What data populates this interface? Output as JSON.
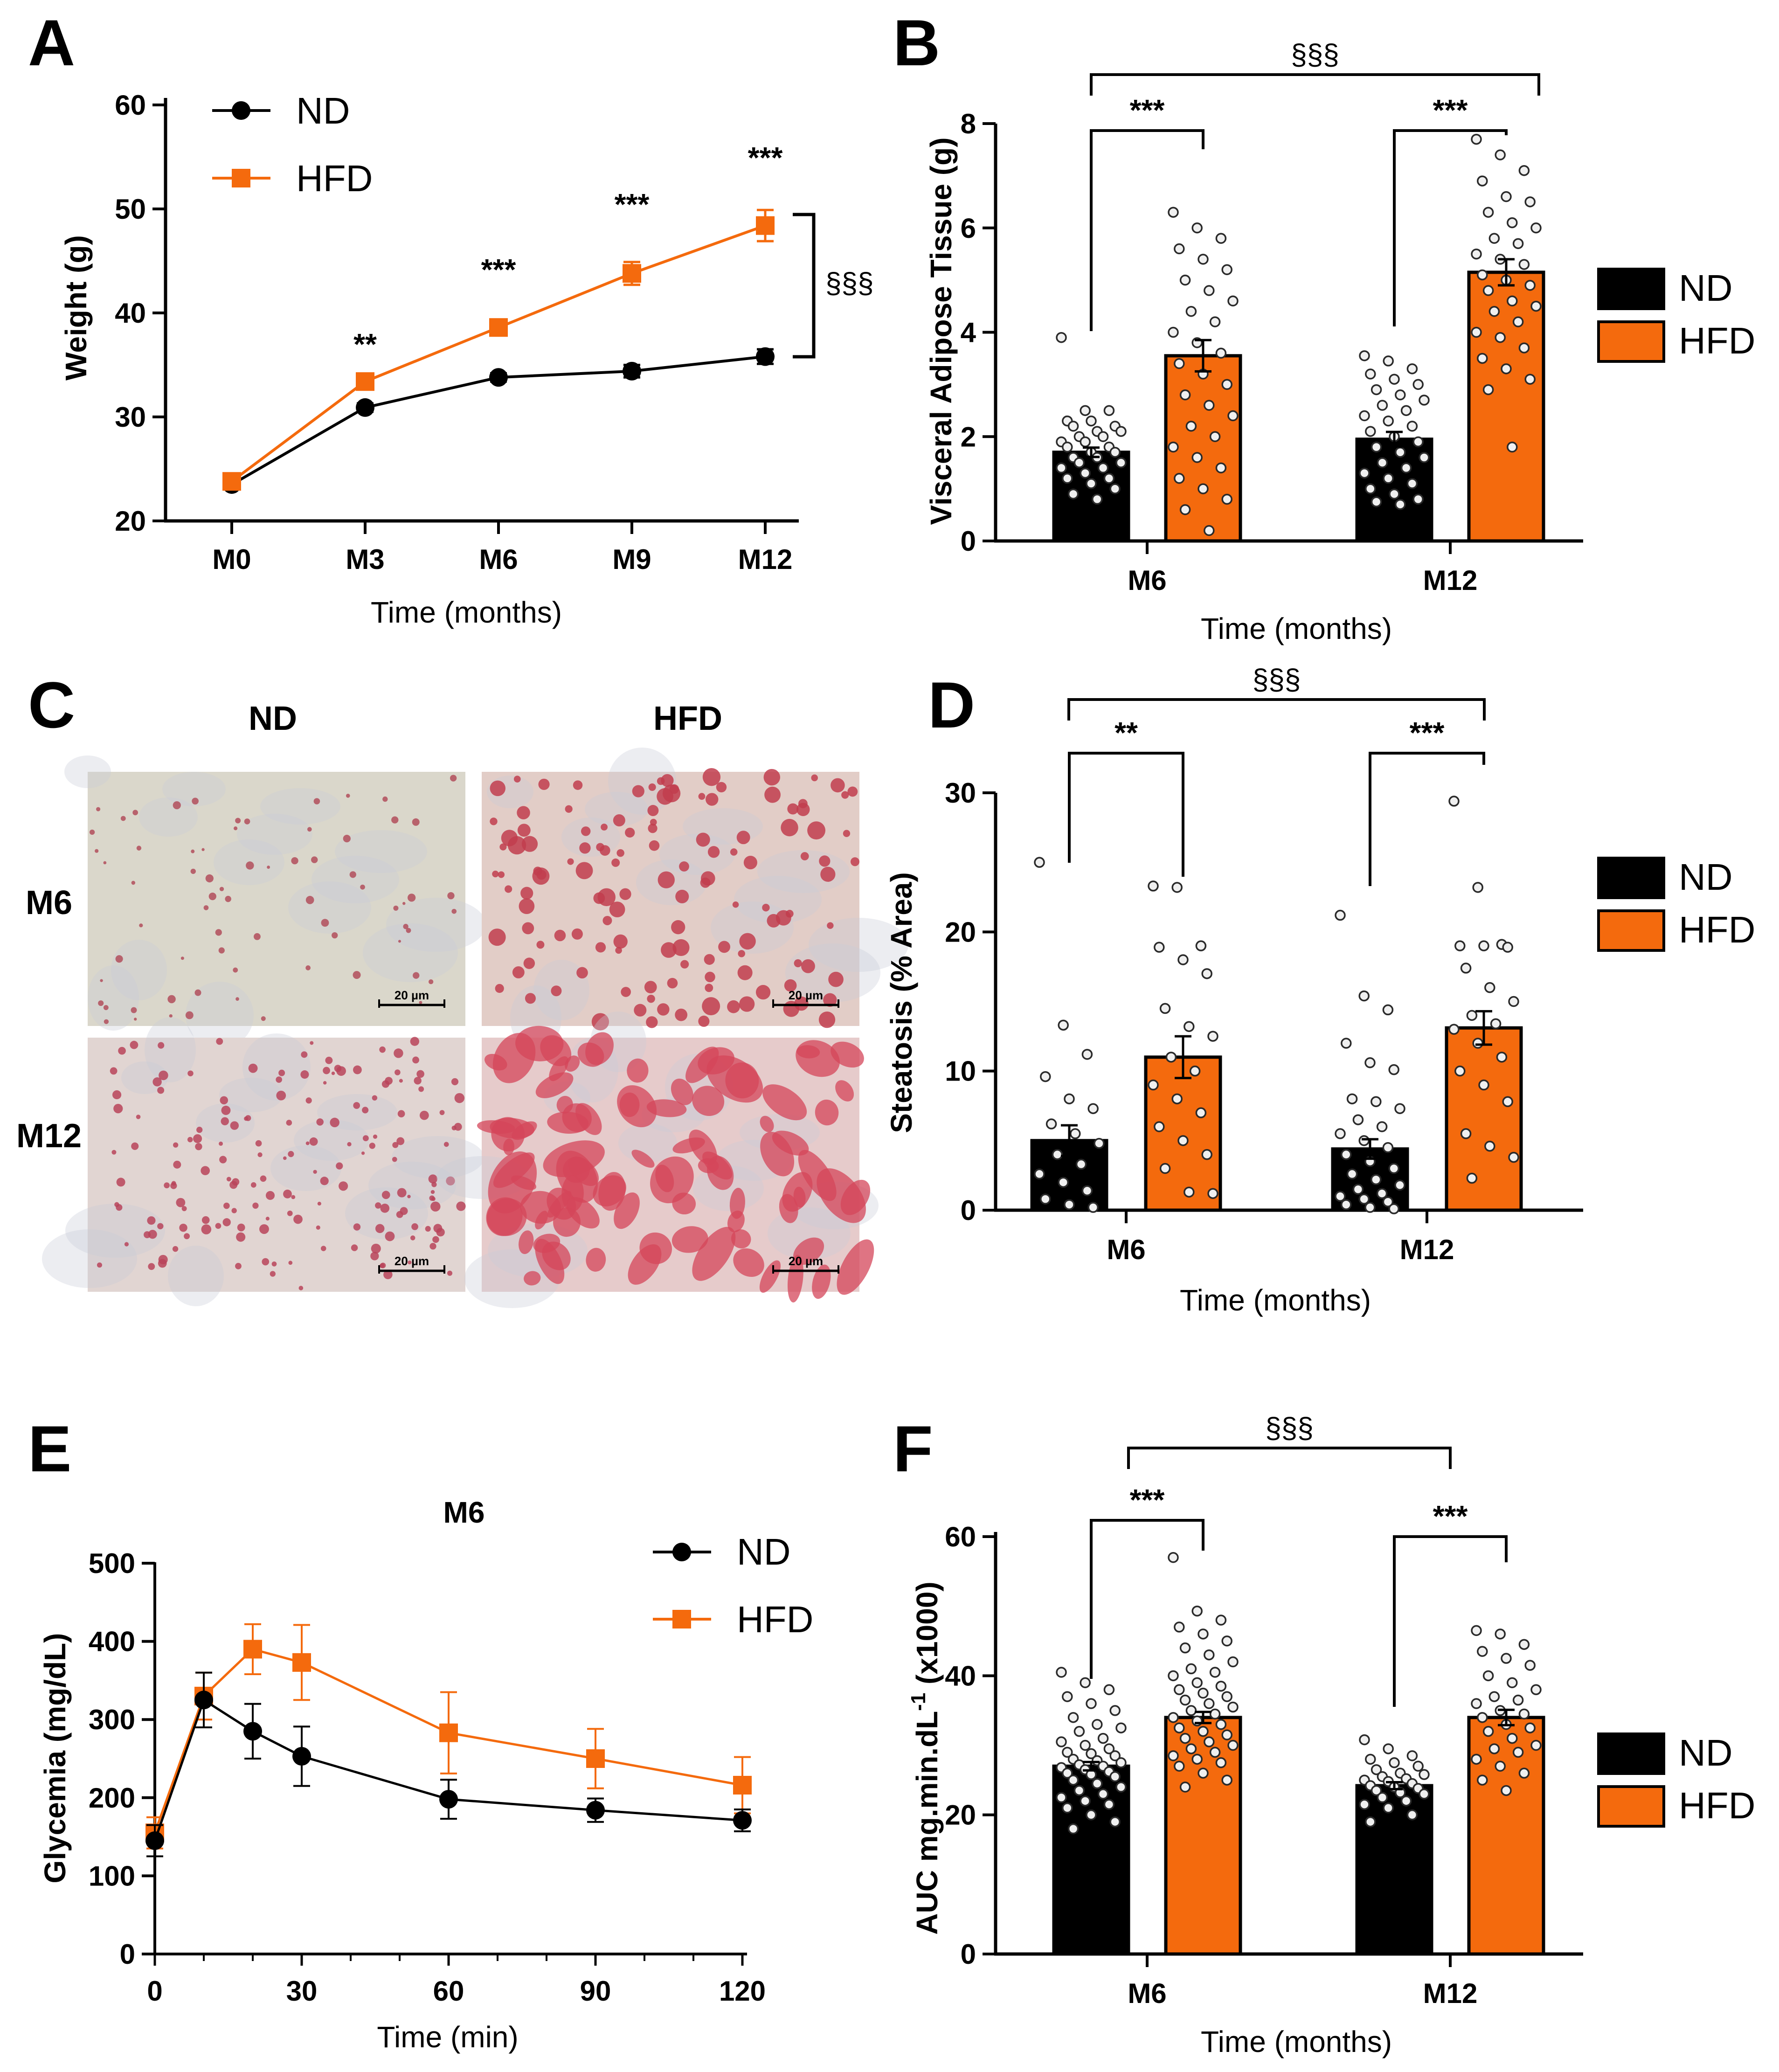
{
  "colors": {
    "nd": "#000000",
    "hfd": "#f46a0d",
    "axis": "#000000",
    "point_fill": "#f0f0f0"
  },
  "icons": {
    "nd_marker": "circle-marker-icon",
    "hfd_marker": "square-marker-icon",
    "scale_bar": "scale-bar-icon"
  },
  "chart_data": [
    {
      "panel": "A",
      "type": "line",
      "title": "",
      "xlabel": "Time (months)",
      "ylabel": "Weight (g)",
      "categories": [
        "M0",
        "M3",
        "M6",
        "M9",
        "M12"
      ],
      "ylim": [
        20,
        60
      ],
      "yticks": [
        "20",
        "30",
        "40",
        "50",
        "60"
      ],
      "series": [
        {
          "name": "ND",
          "values": [
            23.5,
            30.9,
            33.8,
            34.4,
            35.8
          ],
          "errors": [
            0.4,
            0.4,
            0.4,
            0.6,
            0.7
          ]
        },
        {
          "name": "HFD",
          "values": [
            23.8,
            33.4,
            38.6,
            43.8,
            48.4
          ],
          "errors": [
            0.4,
            0.5,
            0.6,
            1.1,
            1.5
          ]
        }
      ],
      "annotations": [
        "",
        "**",
        "***",
        "***",
        "***"
      ],
      "bracket_label": "§§§",
      "legend": [
        "ND",
        "HFD"
      ],
      "legend_position": "top-left"
    },
    {
      "panel": "B",
      "type": "bar",
      "title": "",
      "xlabel": "Time (months)",
      "ylabel": "Visceral Adipose Tissue (g)",
      "categories": [
        "M6",
        "M12"
      ],
      "ylim": [
        0,
        8
      ],
      "yticks": [
        "0",
        "2",
        "4",
        "6",
        "8"
      ],
      "series": [
        {
          "name": "ND",
          "values": [
            1.7,
            1.95
          ],
          "errors": [
            0.09,
            0.14
          ],
          "points": [
            [
              3.9,
              2.5,
              2.5,
              2.3,
              2.3,
              2.2,
              2.2,
              2.1,
              2.1,
              2.0,
              2.0,
              1.9,
              1.9,
              1.8,
              1.8,
              1.7,
              1.7,
              1.6,
              1.6,
              1.5,
              1.5,
              1.4,
              1.4,
              1.3,
              1.2,
              1.2,
              1.1,
              1.0,
              0.9,
              0.8
            ],
            [
              3.55,
              3.45,
              3.3,
              3.2,
              3.1,
              3.0,
              2.9,
              2.8,
              2.7,
              2.6,
              2.5,
              2.4,
              2.3,
              2.2,
              2.1,
              2.0,
              1.9,
              1.8,
              1.7,
              1.6,
              1.5,
              1.4,
              1.3,
              1.2,
              1.1,
              1.0,
              0.9,
              0.8,
              0.75,
              0.7
            ]
          ]
        },
        {
          "name": "HFD",
          "values": [
            3.55,
            5.15
          ],
          "errors": [
            0.3,
            0.25
          ],
          "points": [
            [
              6.3,
              6.0,
              5.8,
              5.6,
              5.4,
              5.2,
              5.0,
              4.8,
              4.6,
              4.4,
              4.2,
              4.0,
              3.8,
              3.6,
              3.4,
              3.2,
              3.0,
              2.8,
              2.6,
              2.4,
              2.2,
              2.0,
              1.8,
              1.6,
              1.4,
              1.2,
              1.0,
              0.8,
              0.6,
              0.2
            ],
            [
              7.7,
              7.4,
              7.1,
              6.9,
              6.6,
              6.5,
              6.3,
              6.1,
              6.0,
              5.8,
              5.7,
              5.5,
              5.4,
              5.3,
              5.1,
              5.0,
              4.9,
              4.8,
              4.6,
              4.5,
              4.4,
              4.2,
              4.0,
              3.9,
              3.7,
              3.5,
              3.3,
              3.1,
              2.9,
              1.8
            ]
          ]
        }
      ],
      "within_labels": [
        "***",
        "***"
      ],
      "between_label": "§§§",
      "legend": [
        "ND",
        "HFD"
      ],
      "legend_position": "right"
    },
    {
      "panel": "D",
      "type": "bar",
      "title": "",
      "xlabel": "Time (months)",
      "ylabel": "Steatosis (% Area)",
      "categories": [
        "M6",
        "M12"
      ],
      "ylim": [
        0,
        30
      ],
      "yticks": [
        "0",
        "10",
        "20",
        "30"
      ],
      "series": [
        {
          "name": "ND",
          "values": [
            5.0,
            4.4
          ],
          "errors": [
            1.1,
            0.7
          ],
          "points": [
            [
              25.0,
              13.3,
              11.2,
              9.6,
              8.0,
              7.3,
              6.2,
              5.5,
              4.8,
              4.0,
              3.3,
              2.6,
              2.0,
              1.4,
              0.8,
              0.4,
              0.2
            ],
            [
              21.2,
              15.4,
              14.4,
              12.0,
              10.6,
              10.1,
              8.0,
              7.8,
              7.3,
              6.5,
              6.0,
              5.5,
              5.0,
              4.5,
              4.0,
              3.5,
              3.0,
              2.6,
              2.2,
              1.8,
              1.5,
              1.2,
              1.0,
              0.8,
              0.6,
              0.4,
              0.2,
              0.1
            ]
          ]
        },
        {
          "name": "HFD",
          "values": [
            11.0,
            13.1
          ],
          "errors": [
            1.5,
            1.2
          ],
          "points": [
            [
              23.3,
              23.2,
              19.0,
              18.9,
              18.0,
              17.0,
              14.5,
              13.2,
              12.5,
              11.0,
              10.0,
              9.0,
              8.0,
              7.0,
              6.0,
              5.0,
              4.0,
              3.0,
              1.3,
              1.2
            ],
            [
              29.4,
              23.2,
              19.1,
              19.0,
              19.0,
              18.9,
              17.4,
              16.0,
              15.0,
              14.0,
              13.4,
              13.0,
              12.0,
              11.0,
              10.0,
              9.0,
              7.8,
              5.5,
              4.6,
              3.8,
              2.3
            ]
          ]
        }
      ],
      "within_labels": [
        "**",
        "***"
      ],
      "between_label": "§§§",
      "legend": [
        "ND",
        "HFD"
      ],
      "legend_position": "right"
    },
    {
      "panel": "E",
      "type": "line",
      "title": "M6",
      "xlabel": "Time (min)",
      "ylabel": "Glycemia (mg/dL)",
      "x": [
        0,
        10,
        20,
        30,
        60,
        90,
        120
      ],
      "xlim": [
        0,
        120
      ],
      "xticks": [
        "0",
        "30",
        "60",
        "90",
        "120"
      ],
      "ylim": [
        0,
        500
      ],
      "yticks": [
        "0",
        "100",
        "200",
        "300",
        "400",
        "500"
      ],
      "series": [
        {
          "name": "ND",
          "values": [
            145,
            325,
            285,
            253,
            198,
            184,
            171
          ],
          "errors": [
            20,
            35,
            35,
            38,
            25,
            15,
            14
          ]
        },
        {
          "name": "HFD",
          "values": [
            155,
            330,
            390,
            373,
            283,
            250,
            216
          ],
          "errors": [
            20,
            30,
            32,
            48,
            52,
            38,
            36
          ]
        }
      ],
      "legend": [
        "ND",
        "HFD"
      ],
      "legend_position": "top-right"
    },
    {
      "panel": "F",
      "type": "bar",
      "title": "",
      "xlabel": "Time (months)",
      "ylabel": "AUC mg.min.dL-1 (x1000)",
      "ylabel_main": "AUC mg.min.dL",
      "ylabel_sup": "-1",
      "ylabel_tail": " (x1000)",
      "categories": [
        "M6",
        "M12"
      ],
      "ylim": [
        0,
        60
      ],
      "yticks": [
        "0",
        "20",
        "40",
        "60"
      ],
      "series": [
        {
          "name": "ND",
          "values": [
            27.0,
            24.2
          ],
          "errors": [
            0.6,
            0.5
          ],
          "points": [
            [
              40.5,
              39.0,
              38.0,
              37.0,
              36.0,
              35.0,
              34.0,
              33.0,
              32.5,
              32.0,
              31.0,
              30.5,
              30.0,
              29.5,
              29.0,
              28.8,
              28.5,
              28.0,
              27.8,
              27.5,
              27.2,
              27.0,
              26.8,
              26.5,
              26.2,
              26.0,
              25.8,
              25.5,
              25.0,
              24.5,
              24.0,
              23.5,
              23.0,
              22.5,
              22.0,
              21.5,
              21.0,
              20.0,
              19.0,
              18.0
            ],
            [
              30.8,
              29.5,
              28.5,
              28.0,
              27.5,
              27.0,
              26.5,
              26.0,
              25.8,
              25.5,
              25.2,
              25.0,
              24.8,
              24.5,
              24.2,
              24.0,
              23.8,
              23.5,
              23.2,
              23.0,
              22.5,
              22.0,
              21.5,
              21.0,
              20.0,
              19.0
            ]
          ]
        },
        {
          "name": "HFD",
          "values": [
            34.0,
            34.0
          ],
          "errors": [
            0.8,
            1.1
          ],
          "points": [
            [
              57.0,
              49.3,
              48.0,
              47.0,
              46.0,
              45.0,
              44.0,
              43.0,
              42.0,
              41.0,
              40.5,
              40.0,
              39.0,
              38.5,
              38.0,
              37.5,
              37.0,
              36.5,
              36.0,
              35.5,
              35.0,
              34.5,
              34.0,
              33.5,
              33.0,
              32.5,
              32.0,
              31.5,
              31.0,
              30.5,
              30.0,
              29.5,
              29.0,
              28.5,
              28.0,
              27.5,
              27.0,
              26.0,
              25.0,
              24.0
            ],
            [
              46.5,
              46.0,
              44.5,
              43.5,
              42.5,
              41.5,
              40.0,
              39.0,
              38.0,
              37.0,
              36.5,
              36.0,
              35.0,
              34.5,
              34.0,
              33.0,
              32.5,
              32.0,
              31.0,
              30.0,
              29.5,
              29.0,
              28.0,
              27.0,
              26.0,
              25.0,
              23.5
            ]
          ]
        }
      ],
      "within_labels": [
        "***",
        "***"
      ],
      "between_label": "§§§",
      "legend": [
        "ND",
        "HFD"
      ],
      "legend_position": "right"
    }
  ],
  "panel_letters": [
    "A",
    "B",
    "C",
    "D",
    "E",
    "F"
  ],
  "histology": {
    "col_labels": [
      "ND",
      "HFD"
    ],
    "row_labels": [
      "M6",
      "M12"
    ],
    "scale_bar_label": "20 µm",
    "tiles": [
      {
        "id": "m6-nd",
        "bg": "#dad7cb",
        "dots": "#b24d5c",
        "dot_count": 70,
        "blob_size": 1.0
      },
      {
        "id": "m6-hfd",
        "bg": "#e2cdc7",
        "dots": "#c13d4d",
        "dot_count": 130,
        "blob_size": 2.2
      },
      {
        "id": "m12-nd",
        "bg": "#e1d5d2",
        "dots": "#b8445a",
        "dot_count": 170,
        "blob_size": 1.2
      },
      {
        "id": "m12-hfd",
        "bg": "#e6cbcb",
        "dots": "#d4465a",
        "dot_count": 90,
        "blob_size": 5.0
      }
    ]
  }
}
